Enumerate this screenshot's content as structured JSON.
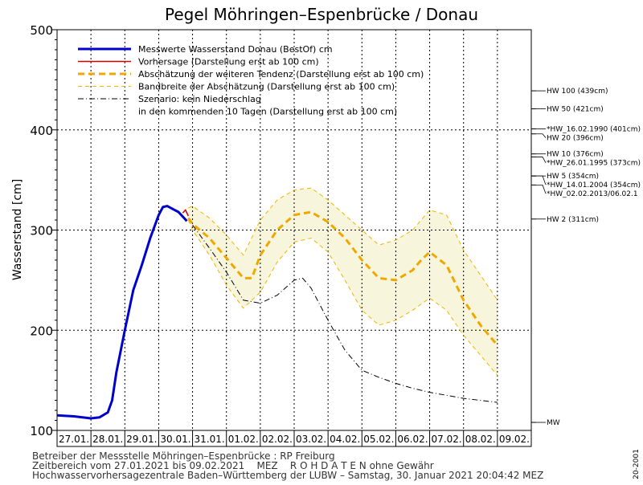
{
  "chart_data": {
    "type": "line",
    "title": "Pegel Möhringen–Espenbrücke / Donau",
    "ylabel": "Wasserstand  [cm]",
    "xlabel": "",
    "ylim": [
      100,
      500
    ],
    "yticks": [
      100,
      200,
      300,
      400,
      500
    ],
    "xlim": [
      "27.01.2021 00:00",
      "09.02.2021 24:00"
    ],
    "day_labels": [
      "27.01.",
      "28.01.",
      "29.01.",
      "30.01.",
      "31.01.",
      "01.02.",
      "02.02.",
      "03.02.",
      "04.02.",
      "05.02.",
      "06.02.",
      "07.02.",
      "08.02.",
      "09.02."
    ],
    "grid": true,
    "legend": [
      {
        "name": "Messwerte Wasserstand Donau   (BestOf)   cm",
        "color": "#0000cc",
        "style": "solid-thick"
      },
      {
        "name": "Vorhersage (Darstellung erst ab 100 cm)",
        "color": "#cc0000",
        "style": "solid"
      },
      {
        "name": "Abschätzung der weiteren Tendenz (Darstellung erst ab 100 cm)",
        "color": "#f0a800",
        "style": "dashed-thick"
      },
      {
        "name": "Bandbreite der Abschätzung (Darstellung erst ab 100 cm)",
        "color": "#f0b400",
        "style": "dashed-thin"
      },
      {
        "name": "Szenario: kein Niederschlag",
        "color": "#000000",
        "style": "dashdot"
      },
      {
        "name": "in den kommenden 10 Tagen (Darstellung erst ab 100 cm)",
        "color": "",
        "style": "none"
      }
    ],
    "series": [
      {
        "name": "Messwerte Wasserstand Donau   (BestOf)   cm",
        "x": [
          "27.01.2021 00:00",
          "27.01.2021 12:00",
          "28.01.2021 00:00",
          "28.01.2021 06:00",
          "28.01.2021 12:00",
          "28.01.2021 15:00",
          "28.01.2021 18:00",
          "29.01.2021 00:00",
          "29.01.2021 06:00",
          "29.01.2021 12:00",
          "29.01.2021 18:00",
          "30.01.2021 00:00",
          "30.01.2021 03:00",
          "30.01.2021 06:00",
          "30.01.2021 10:00",
          "30.01.2021 14:00",
          "30.01.2021 18:00",
          "30.01.2021 20:00"
        ],
        "y": [
          115,
          114,
          112,
          113,
          118,
          130,
          158,
          200,
          240,
          265,
          292,
          315,
          323,
          324,
          321,
          318,
          312,
          309
        ]
      },
      {
        "name": "Vorhersage (Darstellung erst ab 100 cm)",
        "x": [
          "30.01.2021 17:00",
          "30.01.2021 19:00",
          "30.01.2021 21:00"
        ],
        "y": [
          317,
          320,
          314
        ]
      },
      {
        "name": "Abschätzung der weiteren Tendenz (Darstellung erst ab 100 cm)",
        "x": [
          "30.01.2021 21:00",
          "31.01.2021 00:00",
          "31.01.2021 12:00",
          "01.02.2021 00:00",
          "01.02.2021 12:00",
          "01.02.2021 18:00",
          "02.02.2021 00:00",
          "02.02.2021 12:00",
          "03.02.2021 00:00",
          "03.02.2021 12:00",
          "04.02.2021 00:00",
          "04.02.2021 12:00",
          "05.02.2021 00:00",
          "05.02.2021 12:00",
          "06.02.2021 00:00",
          "06.02.2021 12:00",
          "06.02.2021 18:00",
          "07.02.2021 00:00",
          "07.02.2021 12:00",
          "08.02.2021 00:00",
          "08.02.2021 12:00",
          "09.02.2021 00:00"
        ],
        "y": [
          312,
          306,
          292,
          272,
          252,
          252,
          275,
          300,
          315,
          318,
          308,
          292,
          270,
          252,
          250,
          260,
          270,
          278,
          265,
          230,
          205,
          185
        ]
      },
      {
        "name": "Bandbreite der Abschätzung oben",
        "x": [
          "30.01.2021 21:00",
          "31.01.2021 00:00",
          "31.01.2021 12:00",
          "01.02.2021 00:00",
          "01.02.2021 12:00",
          "02.02.2021 00:00",
          "02.02.2021 12:00",
          "03.02.2021 00:00",
          "03.02.2021 12:00",
          "04.02.2021 00:00",
          "04.02.2021 12:00",
          "05.02.2021 00:00",
          "05.02.2021 12:00",
          "06.02.2021 00:00",
          "06.02.2021 12:00",
          "07.02.2021 00:00",
          "07.02.2021 12:00",
          "08.02.2021 00:00",
          "08.02.2021 12:00",
          "09.02.2021 00:00"
        ],
        "y": [
          322,
          324,
          312,
          295,
          275,
          310,
          330,
          340,
          342,
          330,
          315,
          300,
          285,
          290,
          300,
          320,
          315,
          280,
          255,
          230
        ]
      },
      {
        "name": "Bandbreite der Abschätzung unten",
        "x": [
          "30.01.2021 21:00",
          "31.01.2021 00:00",
          "31.01.2021 12:00",
          "01.02.2021 00:00",
          "01.02.2021 12:00",
          "02.02.2021 00:00",
          "02.02.2021 12:00",
          "03.02.2021 00:00",
          "03.02.2021 12:00",
          "04.02.2021 00:00",
          "04.02.2021 12:00",
          "05.02.2021 00:00",
          "05.02.2021 12:00",
          "06.02.2021 00:00",
          "06.02.2021 12:00",
          "07.02.2021 00:00",
          "07.02.2021 12:00",
          "08.02.2021 00:00",
          "08.02.2021 12:00",
          "09.02.2021 00:00"
        ],
        "y": [
          310,
          300,
          275,
          245,
          222,
          238,
          268,
          288,
          292,
          278,
          250,
          220,
          205,
          210,
          220,
          232,
          220,
          195,
          175,
          155
        ]
      },
      {
        "name": "Szenario: kein Niederschlag",
        "x": [
          "31.01.2021 00:00",
          "31.01.2021 12:00",
          "01.02.2021 00:00",
          "01.02.2021 12:00",
          "02.02.2021 00:00",
          "02.02.2021 12:00",
          "03.02.2021 00:00",
          "03.02.2021 06:00",
          "03.02.2021 12:00",
          "04.02.2021 00:00",
          "04.02.2021 12:00",
          "05.02.2021 00:00",
          "05.02.2021 12:00",
          "06.02.2021 00:00",
          "06.02.2021 12:00",
          "07.02.2021 00:00",
          "07.02.2021 12:00",
          "08.02.2021 00:00",
          "08.02.2021 12:00",
          "09.02.2021 00:00"
        ],
        "y": [
          305,
          282,
          258,
          230,
          227,
          235,
          250,
          252,
          242,
          210,
          180,
          160,
          153,
          147,
          142,
          138,
          135,
          132,
          130,
          128
        ]
      }
    ],
    "thresholds": [
      {
        "label": "HW 100 (439cm)",
        "value": 439
      },
      {
        "label": "HW 50 (421cm)",
        "value": 421
      },
      {
        "label": "*HW_16.02.1990 (401cm)",
        "value": 401
      },
      {
        "label": "HW 20 (396cm)",
        "value": 396
      },
      {
        "label": "HW 10 (376cm)",
        "value": 376
      },
      {
        "label": "*HW_26.01.1995 (373cm)",
        "value": 373
      },
      {
        "label": "HW 5 (354cm)",
        "value": 354
      },
      {
        "label": "*HW_14.01.2004 (354cm)",
        "value": 354
      },
      {
        "label": "*HW_02.02.2013/06.02.1",
        "value": 345
      },
      {
        "label": "HW 2 (311cm)",
        "value": 311
      },
      {
        "label": "MW",
        "value": 108
      }
    ]
  },
  "footer": {
    "line1": "Betreiber der Messstelle Möhringen–Espenbrücke : RP Freiburg",
    "line2": "Zeitbereich vom 27.01.2021 bis 09.02.2021    MEZ    R O H D A T E N ohne Gewähr",
    "line3": "Hochwasservorhersagezentrale Baden–Württemberg der LUBW – Samstag, 30. Januar 2021 20:04:42 MEZ",
    "side_code": "20-2001"
  }
}
